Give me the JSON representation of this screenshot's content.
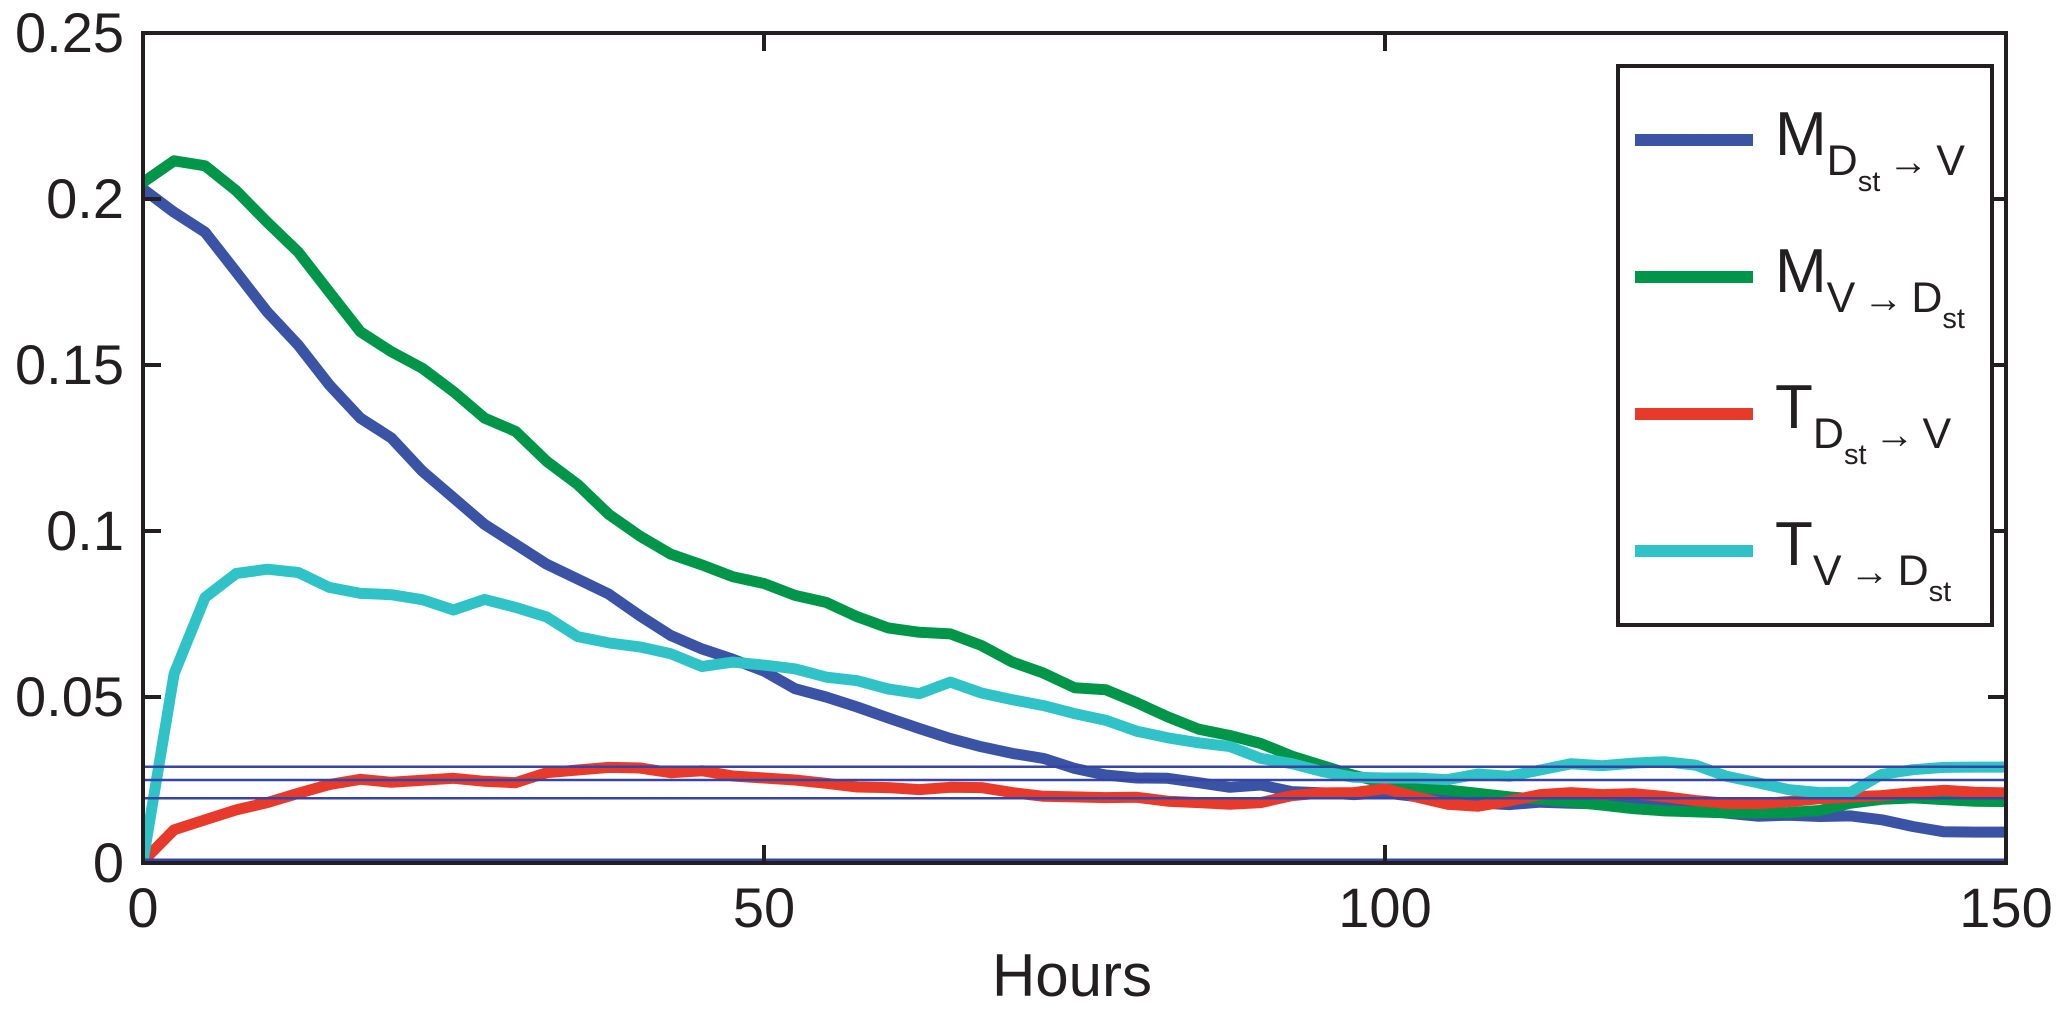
{
  "figure": {
    "background": "#ffffff",
    "axis_color": "#231f20",
    "text_color": "#231f20"
  },
  "chart_data": {
    "type": "line",
    "title": "",
    "xlabel": "Hours",
    "ylabel": "",
    "xlim": [
      0,
      150
    ],
    "ylim": [
      0,
      0.25
    ],
    "xticks": [
      0,
      50,
      100,
      150
    ],
    "xtick_labels": [
      "0",
      "50",
      "100",
      "150"
    ],
    "yticks": [
      0,
      0.05,
      0.1,
      0.15,
      0.2,
      0.25
    ],
    "ytick_labels": [
      "0",
      "0.05",
      "0.1",
      "0.15",
      "0.2",
      "0.25"
    ],
    "grid": false,
    "legend_position": "top-right",
    "x": [
      0,
      2.5,
      5,
      7.5,
      10,
      12.5,
      15,
      17.5,
      20,
      22.5,
      25,
      27.5,
      30,
      32.5,
      35,
      37.5,
      40,
      42.5,
      45,
      47.5,
      50,
      52.5,
      55,
      57.5,
      60,
      62.5,
      65,
      67.5,
      70,
      72.5,
      75,
      77.5,
      80,
      82.5,
      85,
      87.5,
      90,
      92.5,
      95,
      97.5,
      100,
      102.5,
      105,
      107.5,
      110,
      112.5,
      115,
      117.5,
      120,
      122.5,
      125,
      127.5,
      130,
      132.5,
      135,
      137.5,
      140,
      142.5,
      145,
      147.5,
      150
    ],
    "series": [
      {
        "name": "M_Dst_to_V",
        "label_plain": "M_{D_st -> V}",
        "color": "#3a53a4",
        "values": [
          0.203,
          0.196,
          0.19,
          0.178,
          0.166,
          0.156,
          0.144,
          0.134,
          0.128,
          0.118,
          0.11,
          0.102,
          0.096,
          0.09,
          0.0855,
          0.081,
          0.0745,
          0.0685,
          0.0645,
          0.0614,
          0.0578,
          0.0525,
          0.05,
          0.047,
          0.0437,
          0.0405,
          0.0375,
          0.035,
          0.033,
          0.0315,
          0.0285,
          0.0265,
          0.0256,
          0.0255,
          0.0242,
          0.0228,
          0.0235,
          0.0215,
          0.0211,
          0.0206,
          0.0211,
          0.02,
          0.019,
          0.0181,
          0.0176,
          0.0183,
          0.018,
          0.0178,
          0.0179,
          0.0175,
          0.0168,
          0.015,
          0.0141,
          0.0144,
          0.014,
          0.0142,
          0.013,
          0.011,
          0.0094,
          0.0093,
          0.0093
        ]
      },
      {
        "name": "M_V_to_Dst",
        "label_plain": "M_{V -> D_st}",
        "color": "#009649",
        "values": [
          0.205,
          0.2115,
          0.21,
          0.2025,
          0.193,
          0.184,
          0.172,
          0.16,
          0.154,
          0.149,
          0.142,
          0.134,
          0.13,
          0.121,
          0.114,
          0.105,
          0.0985,
          0.093,
          0.0898,
          0.0862,
          0.0842,
          0.0806,
          0.0785,
          0.0742,
          0.0708,
          0.0695,
          0.069,
          0.0655,
          0.0605,
          0.0572,
          0.0528,
          0.0522,
          0.0483,
          0.044,
          0.0403,
          0.0384,
          0.036,
          0.0322,
          0.0293,
          0.0264,
          0.0241,
          0.0229,
          0.022,
          0.021,
          0.0199,
          0.0192,
          0.0184,
          0.0174,
          0.0164,
          0.0157,
          0.0154,
          0.0151,
          0.0151,
          0.0152,
          0.0158,
          0.018,
          0.0192,
          0.0196,
          0.0191,
          0.0186,
          0.0185
        ]
      },
      {
        "name": "T_Dst_to_V",
        "label_plain": "T_{D_st -> V}",
        "color": "#e73a2a",
        "values": [
          0.0005,
          0.01,
          0.013,
          0.016,
          0.0182,
          0.021,
          0.0236,
          0.0252,
          0.0243,
          0.0249,
          0.0255,
          0.0246,
          0.0242,
          0.0272,
          0.028,
          0.0288,
          0.0286,
          0.0272,
          0.0278,
          0.0262,
          0.0256,
          0.025,
          0.024,
          0.0229,
          0.0227,
          0.0221,
          0.0228,
          0.0227,
          0.0212,
          0.0201,
          0.0199,
          0.0197,
          0.0198,
          0.0186,
          0.0182,
          0.0177,
          0.0182,
          0.0203,
          0.0211,
          0.0212,
          0.0224,
          0.0199,
          0.0177,
          0.0171,
          0.0187,
          0.0206,
          0.0212,
          0.0206,
          0.0209,
          0.02,
          0.0188,
          0.018,
          0.0179,
          0.0185,
          0.0194,
          0.0199,
          0.0203,
          0.0212,
          0.0219,
          0.0213,
          0.0211
        ]
      },
      {
        "name": "T_V_to_Dst",
        "label_plain": "T_{V -> D_st}",
        "color": "#2fc3c7",
        "values": [
          0.0005,
          0.057,
          0.08,
          0.0872,
          0.0885,
          0.0875,
          0.083,
          0.0812,
          0.0808,
          0.0793,
          0.0762,
          0.0794,
          0.077,
          0.0741,
          0.0682,
          0.0663,
          0.0651,
          0.063,
          0.0592,
          0.0605,
          0.0596,
          0.0585,
          0.056,
          0.0549,
          0.0524,
          0.051,
          0.0545,
          0.0512,
          0.0492,
          0.0474,
          0.045,
          0.043,
          0.0397,
          0.0377,
          0.0362,
          0.0351,
          0.0315,
          0.0299,
          0.0275,
          0.0258,
          0.0256,
          0.0256,
          0.0251,
          0.0268,
          0.0261,
          0.028,
          0.0299,
          0.0293,
          0.0301,
          0.0305,
          0.0295,
          0.0261,
          0.0242,
          0.0221,
          0.0212,
          0.0213,
          0.0267,
          0.0281,
          0.0288,
          0.0289,
          0.0289
        ]
      }
    ],
    "reference_lines": {
      "color": "#3644a6",
      "values": [
        0.029,
        0.025,
        0.0195,
        0.001
      ]
    },
    "legend": {
      "items": [
        {
          "series_key": "M_Dst_to_V",
          "main": "M",
          "from": "D",
          "from_sub": "st",
          "arrow": "→",
          "to": "V",
          "to_sub": ""
        },
        {
          "series_key": "M_V_to_Dst",
          "main": "M",
          "from": "V",
          "from_sub": "",
          "arrow": "→",
          "to": "D",
          "to_sub": "st"
        },
        {
          "series_key": "T_Dst_to_V",
          "main": "T",
          "from": "D",
          "from_sub": "st",
          "arrow": "→",
          "to": "V",
          "to_sub": ""
        },
        {
          "series_key": "T_V_to_Dst",
          "main": "T",
          "from": "V",
          "from_sub": "",
          "arrow": "→",
          "to": "D",
          "to_sub": "st"
        }
      ]
    }
  }
}
